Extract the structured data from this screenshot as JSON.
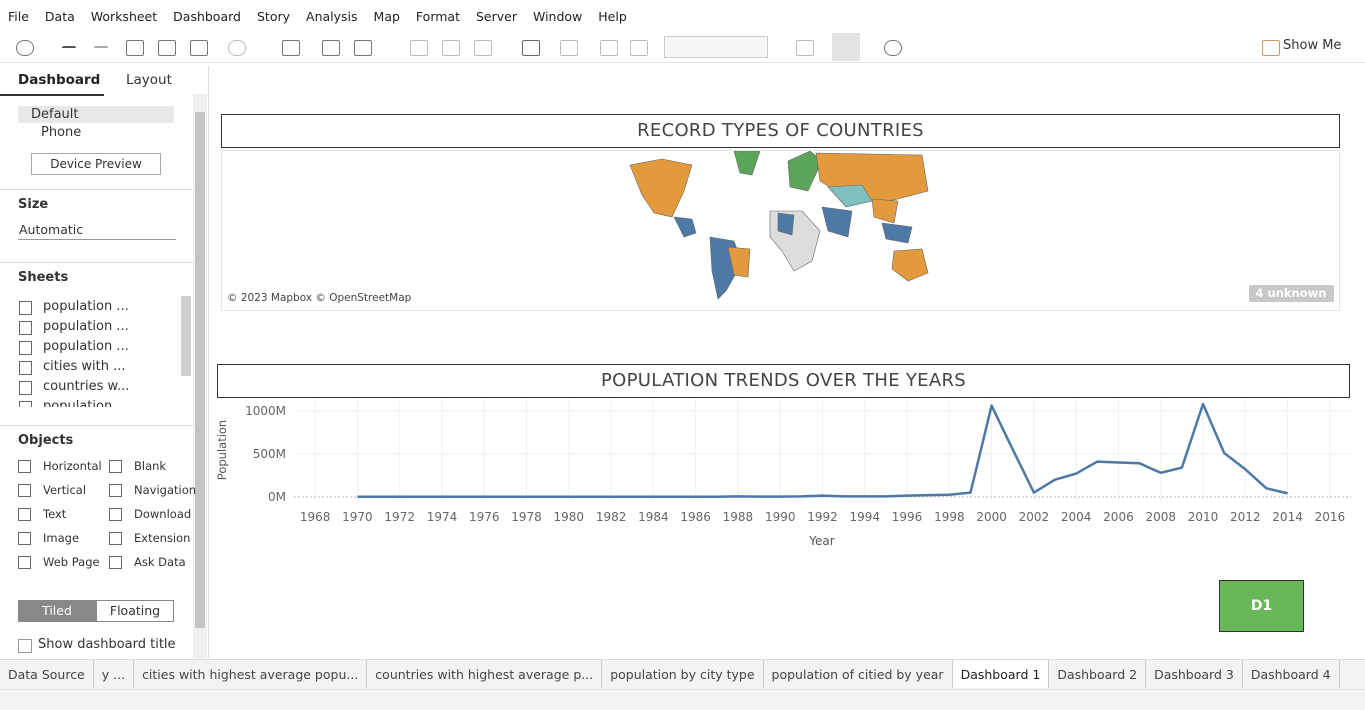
{
  "menu": [
    "File",
    "Data",
    "Worksheet",
    "Dashboard",
    "Story",
    "Analysis",
    "Map",
    "Format",
    "Server",
    "Window",
    "Help"
  ],
  "toolbar": {
    "show_me": "Show Me"
  },
  "left_panel": {
    "tabs": [
      "Dashboard",
      "Layout"
    ],
    "device_options": [
      "Default",
      "Phone"
    ],
    "device_preview": "Device Preview",
    "size": {
      "title": "Size",
      "value": "Automatic"
    },
    "sheets": {
      "title": "Sheets",
      "items": [
        "population ...",
        "population ...",
        "population ...",
        "cities with ...",
        "countries w...",
        "population"
      ]
    },
    "objects": {
      "title": "Objects",
      "items": [
        "Horizontal",
        "Blank",
        "Vertical",
        "Navigation",
        "Text",
        "Download",
        "Image",
        "Extension",
        "Web Page",
        "Ask Data"
      ]
    },
    "layout_modes": [
      "Tiled",
      "Floating"
    ],
    "show_title": "Show dashboard title"
  },
  "map": {
    "title": "RECORD TYPES OF COUNTRIES",
    "attribution": "© 2023 Mapbox © OpenStreetMap",
    "unknown_badge": "4 unknown"
  },
  "chart_data": {
    "type": "line",
    "title": "POPULATION TRENDS OVER THE YEARS",
    "x_label": "Year",
    "y_label": "Population",
    "color": "#4e79a7",
    "x": [
      1970,
      1971,
      1972,
      1973,
      1974,
      1975,
      1976,
      1977,
      1978,
      1979,
      1980,
      1981,
      1982,
      1983,
      1984,
      1985,
      1986,
      1987,
      1988,
      1989,
      1990,
      1991,
      1992,
      1993,
      1994,
      1995,
      1996,
      1997,
      1998,
      1999,
      2000,
      2001,
      2002,
      2003,
      2004,
      2005,
      2006,
      2007,
      2008,
      2009,
      2010,
      2011,
      2012,
      2013,
      2014
    ],
    "values": [
      2,
      2,
      2,
      2,
      2,
      2,
      2,
      2,
      2,
      2,
      2,
      2,
      2,
      2,
      2,
      2,
      2,
      2,
      5,
      3,
      3,
      5,
      15,
      5,
      5,
      5,
      15,
      20,
      25,
      50,
      1060,
      550,
      50,
      200,
      270,
      410,
      400,
      390,
      280,
      340,
      1080,
      510,
      320,
      100,
      40
    ],
    "xlim": [
      1967,
      2017
    ],
    "xticks": [
      1968,
      1970,
      1972,
      1974,
      1976,
      1978,
      1980,
      1982,
      1984,
      1986,
      1988,
      1990,
      1992,
      1994,
      1996,
      1998,
      2000,
      2002,
      2004,
      2006,
      2008,
      2010,
      2012,
      2014,
      2016
    ],
    "ylim": [
      -25,
      1150
    ],
    "yticks": [
      {
        "value": 0,
        "label": "0M"
      },
      {
        "value": 500,
        "label": "500M"
      },
      {
        "value": 1000,
        "label": "1000M"
      }
    ],
    "grid": true
  },
  "button": "D1",
  "sheet_tabs": [
    "Data Source",
    "y ...",
    "cities with highest average popu...",
    "countries with highest average p...",
    "population by city type",
    "population of citied by year",
    "Dashboard 1",
    "Dashboard 2",
    "Dashboard 3",
    "Dashboard 4"
  ]
}
